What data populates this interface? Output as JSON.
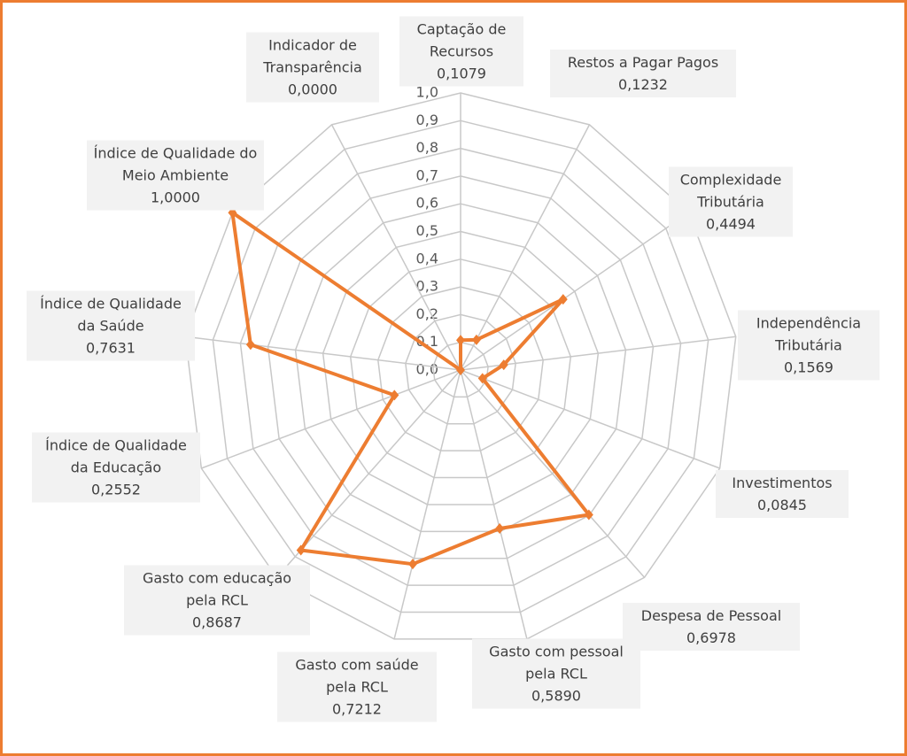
{
  "chart_data": {
    "type": "radar",
    "categories": [
      "Captação de Recursos",
      "Restos a Pagar Pagos",
      "Complexidade Tributária",
      "Independência Tributária",
      "Investimentos",
      "Despesa de Pessoal",
      "Gasto com pessoal pela RCL",
      "Gasto com saúde pela RCL",
      "Gasto com educação pela RCL",
      "Índice de Qualidade da Educação",
      "Índice de Qualidade da Saúde",
      "Índice de Qualidade do Meio Ambiente",
      "Indicador de Transparência"
    ],
    "values": [
      0.1079,
      0.1232,
      0.4494,
      0.1569,
      0.0845,
      0.6978,
      0.589,
      0.7212,
      0.8687,
      0.2552,
      0.7631,
      1.0,
      0.0
    ],
    "value_labels": [
      "0,1079",
      "0,1232",
      "0,4494",
      "0,1569",
      "0,0845",
      "0,6978",
      "0,5890",
      "0,7212",
      "0,8687",
      "0,2552",
      "0,7631",
      "1,0000",
      "0,0000"
    ],
    "color": "#ed7d31",
    "ylim": [
      0,
      1
    ],
    "yticks": [
      {
        "value": 0,
        "label": "0,0"
      },
      {
        "value": 0.1,
        "label": "0,1"
      },
      {
        "value": 0.2,
        "label": "0,2"
      },
      {
        "value": 0.3,
        "label": "0,3"
      },
      {
        "value": 0.4,
        "label": "0,4"
      },
      {
        "value": 0.5,
        "label": "0,5"
      },
      {
        "value": 0.6,
        "label": "0,6"
      },
      {
        "value": 0.7,
        "label": "0,7"
      },
      {
        "value": 0.8,
        "label": "0,8"
      },
      {
        "value": 0.9,
        "label": "0,9"
      },
      {
        "value": 1.0,
        "label": "1,0"
      }
    ],
    "grid": true
  }
}
